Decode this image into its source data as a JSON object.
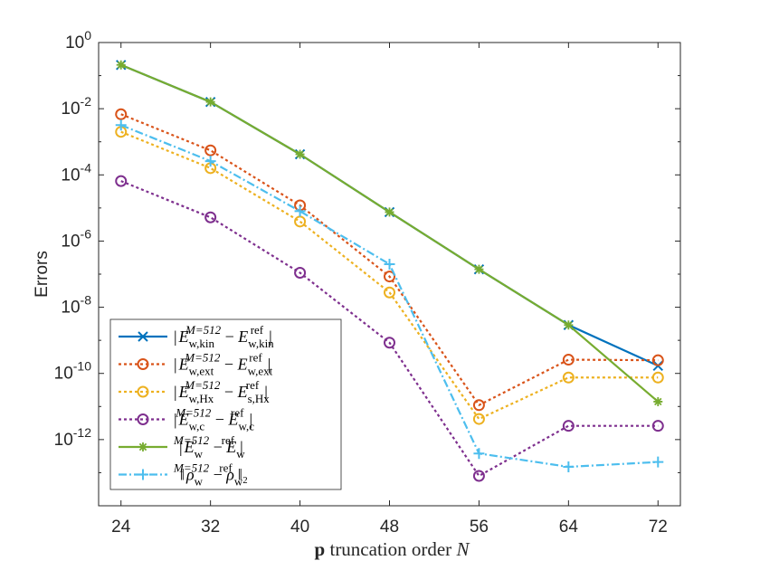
{
  "chart_data": {
    "type": "line",
    "yscale": "log",
    "title": "",
    "xlabel": {
      "bold": "p",
      "text": " truncation order ",
      "italic": "N"
    },
    "ylabel": "Errors",
    "x": [
      24,
      32,
      40,
      48,
      56,
      64,
      72
    ],
    "xlim": [
      22,
      74
    ],
    "ylim": [
      1e-14,
      1
    ],
    "ytick_values": [
      1,
      0.01,
      0.0001,
      1e-06,
      1e-08,
      1e-10,
      1e-12
    ],
    "ytick_labels": [
      {
        "base": "10",
        "exp": "0"
      },
      {
        "base": "10",
        "exp": "-2"
      },
      {
        "base": "10",
        "exp": "-4"
      },
      {
        "base": "10",
        "exp": "-6"
      },
      {
        "base": "10",
        "exp": "-8"
      },
      {
        "base": "10",
        "exp": "-10"
      },
      {
        "base": "10",
        "exp": "-12"
      }
    ],
    "legend_position": "bottom-left",
    "series": [
      {
        "name": "kin",
        "label": {
          "pre": "|",
          "s1": "E",
          "sub1": "w,kin",
          "sup1": "M=512",
          "mid": " − ",
          "s2": "E",
          "sub2": "w,kin",
          "sup2": "ref",
          "post": "|"
        },
        "color": "#0072BD",
        "linestyle": "solid",
        "marker": "x",
        "values": [
          0.21,
          0.016,
          0.00042,
          7.5e-06,
          1.4e-07,
          2.9e-09,
          1.7e-10
        ]
      },
      {
        "name": "ext",
        "label": {
          "pre": "|",
          "s1": "E",
          "sub1": "w,ext",
          "sup1": "M=512",
          "mid": " − ",
          "s2": "E",
          "sub2": "w,ext",
          "sup2": "ref",
          "post": "|"
        },
        "color": "#D95319",
        "linestyle": "dotted",
        "marker": "o",
        "values": [
          0.0068,
          0.00055,
          1.2e-05,
          8.5e-08,
          1.1e-11,
          2.6e-10,
          2.5e-10
        ]
      },
      {
        "name": "Hx",
        "label": {
          "pre": "|",
          "s1": "E",
          "sub1": "w,Hx",
          "sup1": "M=512",
          "mid": " − ",
          "s2": "E",
          "sub2": "s,Hx",
          "sup2": "ref",
          "post": "|"
        },
        "color": "#EDB120",
        "linestyle": "dotted",
        "marker": "o",
        "values": [
          0.002,
          0.00016,
          3.9e-06,
          2.8e-08,
          4.2e-12,
          7.5e-11,
          7.5e-11
        ]
      },
      {
        "name": "c",
        "label": {
          "pre": "|",
          "s1": "E",
          "sub1": "w,c",
          "sup1": "M=512",
          "mid": " − ",
          "s2": "E",
          "sub2": "w,c",
          "sup2": "ref",
          "post": "|"
        },
        "color": "#7E2F8E",
        "linestyle": "dotted",
        "marker": "o",
        "values": [
          6.5e-05,
          5.2e-06,
          1.1e-07,
          8.5e-10,
          8e-14,
          2.6e-12,
          2.6e-12
        ]
      },
      {
        "name": "w",
        "label": {
          "pre": "|",
          "s1": "E",
          "sub1": "w",
          "sup1": "M=512",
          "mid": " − ",
          "s2": "E",
          "sub2": "w",
          "sup2": "ref",
          "post": "|"
        },
        "color": "#77AC30",
        "linestyle": "solid",
        "marker": "asterisk",
        "values": [
          0.21,
          0.016,
          0.00042,
          7.5e-06,
          1.4e-07,
          2.9e-09,
          1.4e-11
        ]
      },
      {
        "name": "rho",
        "label": {
          "pre": "‖",
          "s1": "ρ",
          "sub1": "w",
          "sup1": "M=512",
          "mid": " − ",
          "s2": "ρ",
          "sub2": "w",
          "sup2": "ref",
          "post": "‖₂"
        },
        "color": "#4DBEEE",
        "linestyle": "dashdot",
        "marker": "plus",
        "values": [
          0.0032,
          0.00026,
          8e-06,
          2e-07,
          3.8e-13,
          1.5e-13,
          2.1e-13
        ]
      }
    ]
  }
}
